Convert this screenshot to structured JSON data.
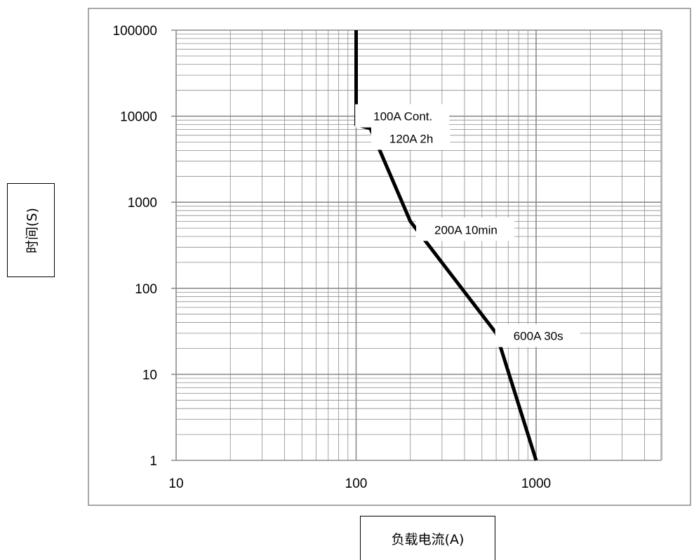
{
  "chart_data": {
    "type": "line",
    "title": "",
    "xlabel": "负载电流(A)",
    "ylabel": "时间(S)",
    "x_scale": "log",
    "y_scale": "log",
    "xlim": [
      10,
      5000
    ],
    "ylim": [
      1,
      100000
    ],
    "x_ticks": [
      "10",
      "100",
      "1000"
    ],
    "y_ticks": [
      "1",
      "10",
      "100",
      "1000",
      "10000",
      "100000"
    ],
    "grid": true,
    "legend": "none",
    "line_color": "#000000",
    "grid_color": "#8c8c8c",
    "series": [
      {
        "x": [
          100,
          100,
          120,
          200,
          600,
          1000
        ],
        "y": [
          100000,
          8000,
          7200,
          600,
          30,
          1
        ]
      }
    ],
    "annotations": [
      {
        "text": "100A  Cont.",
        "x": 110,
        "y": 10000
      },
      {
        "text": "120A  2h",
        "x": 135,
        "y": 5500
      },
      {
        "text": "200A  10min",
        "x": 240,
        "y": 480
      },
      {
        "text": "600A  30s",
        "x": 660,
        "y": 28
      }
    ]
  }
}
